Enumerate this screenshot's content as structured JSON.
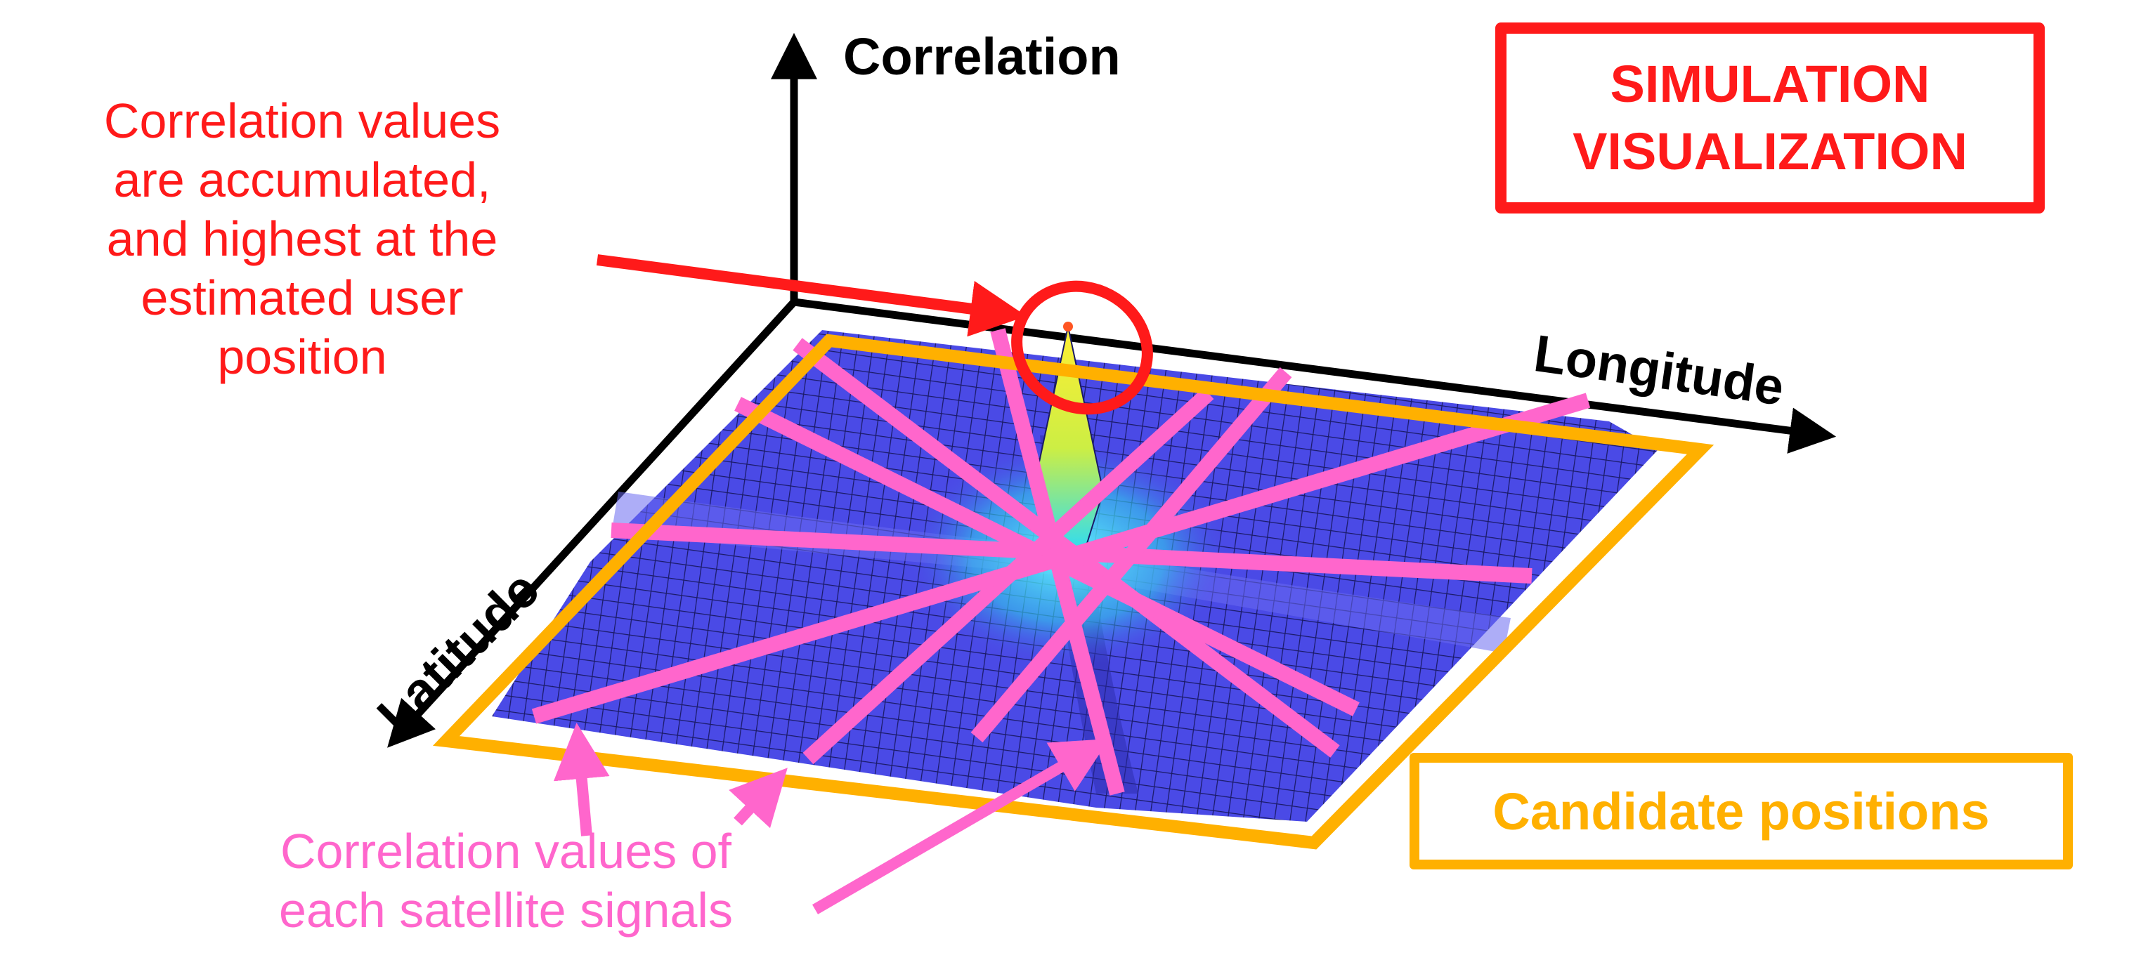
{
  "axes": {
    "z_label": "Correlation",
    "x_label": "Longitude",
    "y_label": "Latitude"
  },
  "annotations": {
    "peak_note": [
      "Correlation values",
      "are accumulated,",
      "and highest at the",
      "estimated user",
      "position"
    ],
    "satellite_note": [
      "Correlation values of",
      "each satellite signals"
    ]
  },
  "boxes": {
    "simulation": [
      "SIMULATION",
      "VISUALIZATION"
    ],
    "candidate": "Candidate positions"
  },
  "colors": {
    "surface": "#4a4ae6",
    "mesh": "#1a1a66",
    "peak": "#ffee33",
    "satellite_lines": "#ff66cc",
    "candidate_border": "#ffb000",
    "highlight": "#ff1a1a",
    "axes": "#000000"
  }
}
